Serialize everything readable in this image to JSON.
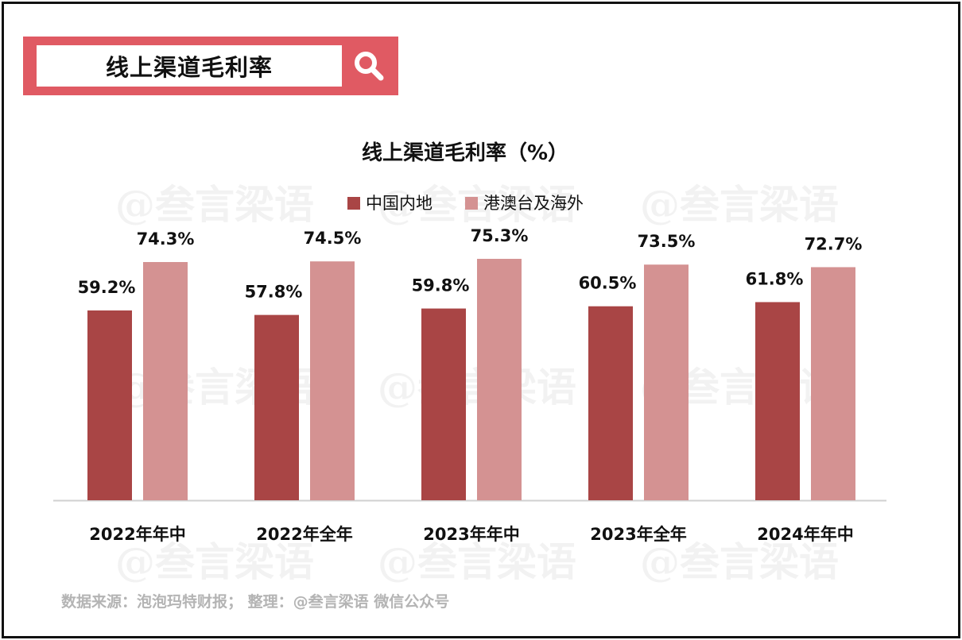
{
  "header": {
    "title": "线上渠道毛利率",
    "search_icon": "search-icon"
  },
  "chart_data": {
    "type": "bar",
    "title": "线上渠道毛利率（%）",
    "categories": [
      "2022年年中",
      "2022年全年",
      "2023年年中",
      "2023年全年",
      "2024年年中"
    ],
    "series": [
      {
        "name": "中国内地",
        "values": [
          59.2,
          57.8,
          59.8,
          60.5,
          61.8
        ],
        "labels": [
          "59.2%",
          "57.8%",
          "59.8%",
          "60.5%",
          "61.8%"
        ],
        "color": "#a94545"
      },
      {
        "name": "港澳台及海外",
        "values": [
          74.3,
          74.5,
          75.3,
          73.5,
          72.7
        ],
        "labels": [
          "74.3%",
          "74.5%",
          "75.3%",
          "73.5%",
          "72.7%"
        ],
        "color": "#d49292"
      }
    ],
    "ylim": [
      0,
      100
    ],
    "grid": false,
    "legend": "top-center"
  },
  "watermark": "@叁言梁语",
  "footer": {
    "source": "数据来源：泡泡玛特财报；  整理：@叁言梁语 微信公众号"
  }
}
